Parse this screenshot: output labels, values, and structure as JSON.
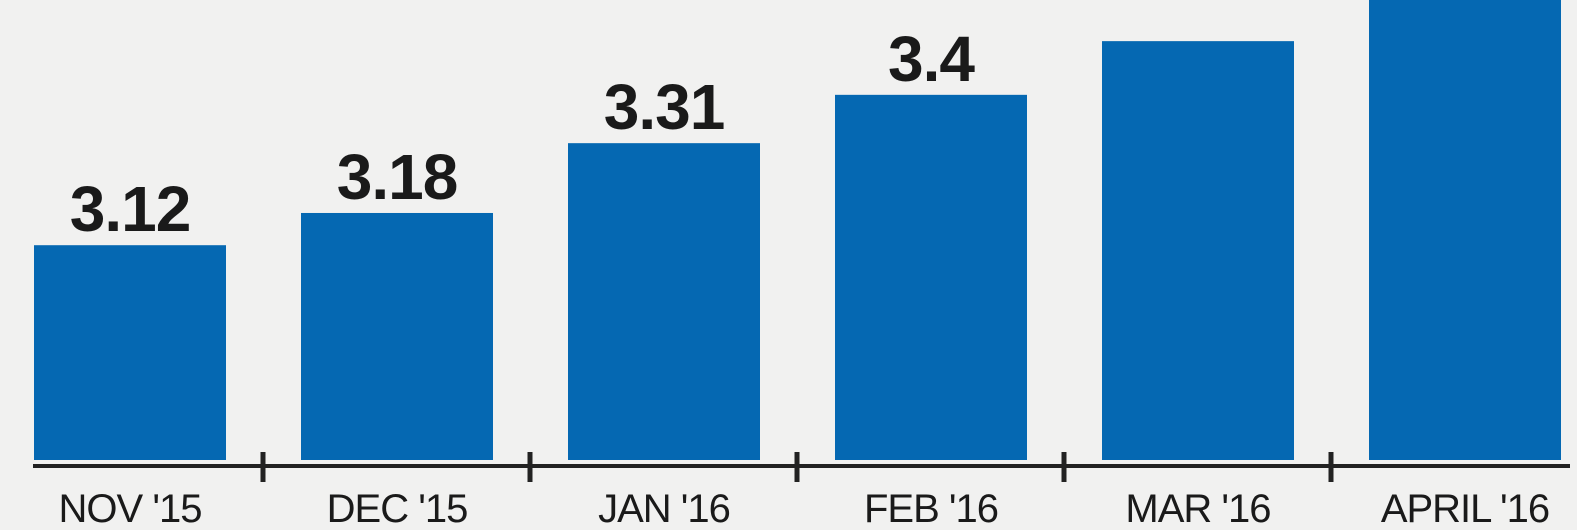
{
  "chart_data": {
    "type": "bar",
    "categories": [
      "NOV '15",
      "DEC '15",
      "JAN '16",
      "FEB '16",
      "MAR '16",
      "APRIL '16"
    ],
    "values": [
      3.12,
      3.18,
      3.31,
      3.4,
      3.5,
      null
    ],
    "data_labels": [
      "3.12",
      "3.18",
      "3.31",
      "3.4",
      "",
      ""
    ],
    "title": "",
    "xlabel": "",
    "ylabel": "",
    "ylim": [
      2.72,
      3.57
    ],
    "grid": false,
    "legend": "none",
    "colors": {
      "bar": "#0568b2",
      "background": "#f1f1f0",
      "text": "#1a1a1a",
      "axis": "#222222"
    }
  }
}
